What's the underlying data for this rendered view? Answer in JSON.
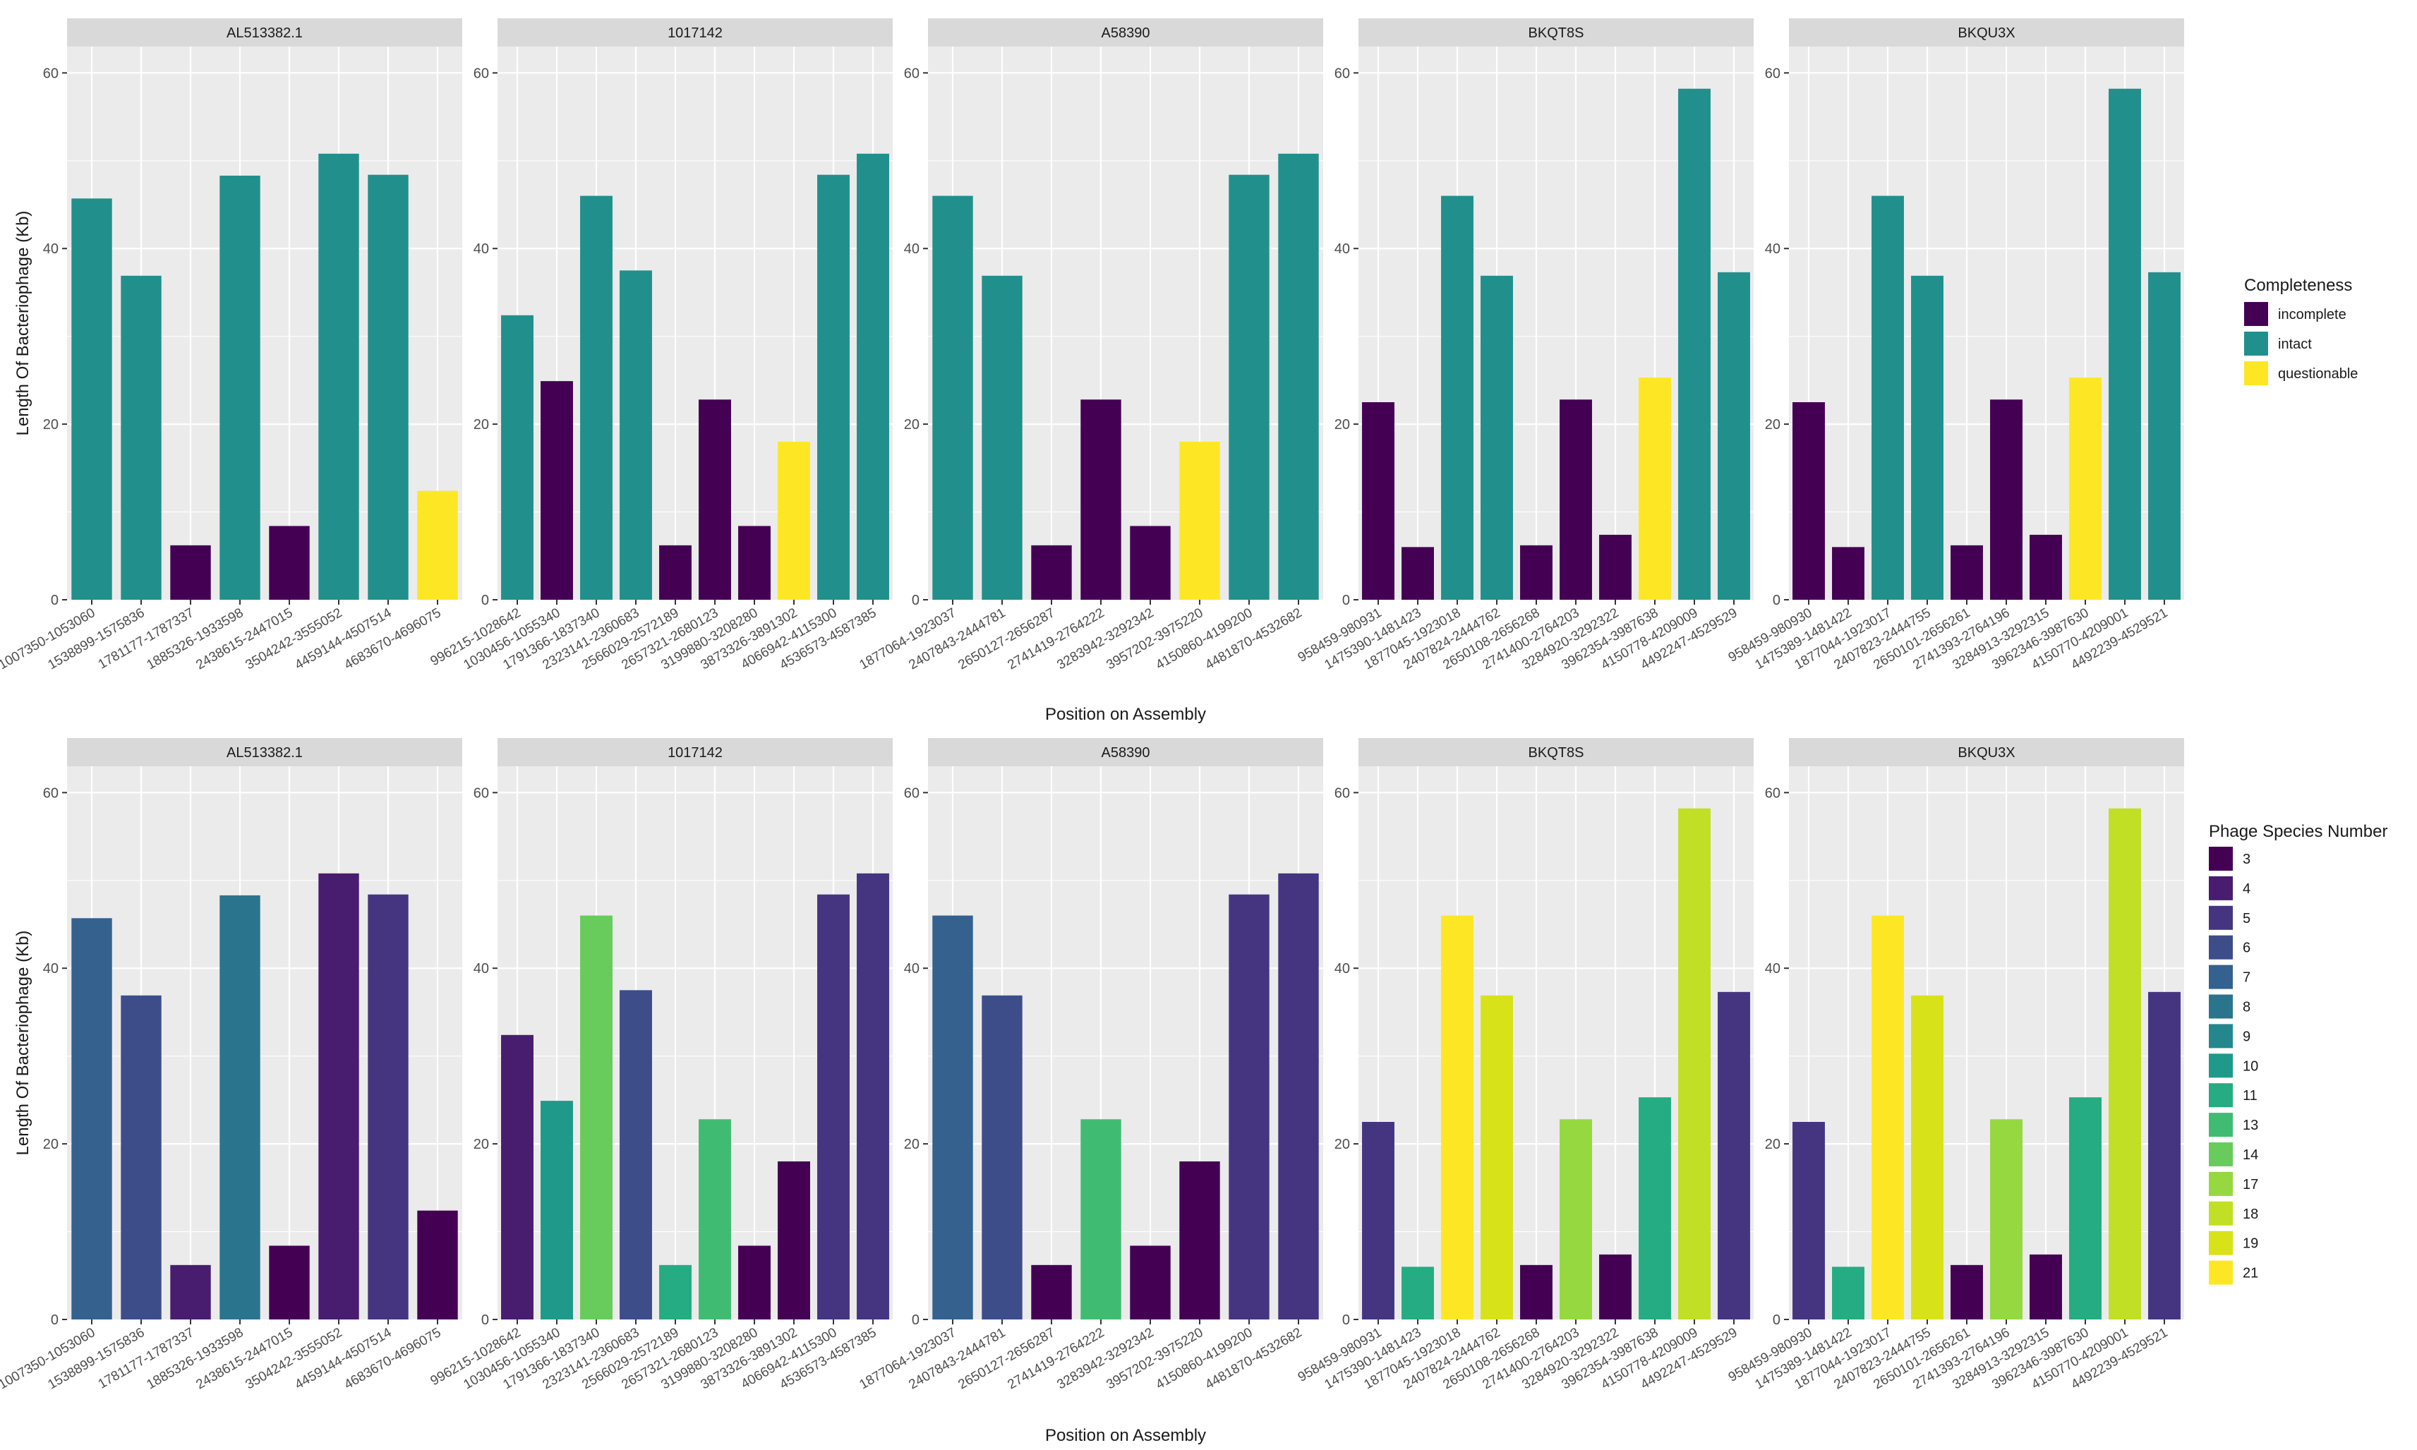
{
  "chart_data": [
    {
      "type": "bar",
      "xlabel": "Position on Assembly",
      "ylabel": "Length Of Bacteriophage (Kb)",
      "ylim": [
        0,
        63
      ],
      "yticks": [
        0,
        20,
        40,
        60
      ],
      "grid": true,
      "legend": {
        "title": "Completeness",
        "placement": "right",
        "entries": [
          {
            "label": "incomplete",
            "color": "#440154"
          },
          {
            "label": "intact",
            "color": "#21908C"
          },
          {
            "label": "questionable",
            "color": "#FDE725"
          }
        ]
      },
      "panels": [
        {
          "strip": "AL513382.1",
          "categories": [
            "1007350-1053060",
            "1538899-1575836",
            "1781177-1787337",
            "1885326-1933598",
            "2438615-2447015",
            "3504242-3555052",
            "4459144-4507514",
            "4683670-4696075"
          ],
          "values": [
            45.7,
            36.9,
            6.2,
            48.3,
            8.4,
            50.8,
            48.4,
            12.4
          ],
          "groups": [
            "intact",
            "intact",
            "incomplete",
            "intact",
            "incomplete",
            "intact",
            "intact",
            "questionable"
          ]
        },
        {
          "strip": "1017142",
          "categories": [
            "996215-1028642",
            "1030456-1055340",
            "1791366-1837340",
            "2323141-2360683",
            "2566029-2572189",
            "2657321-2680123",
            "3199880-3208280",
            "3873326-3891302",
            "4066942-4115300",
            "4536573-4587385"
          ],
          "values": [
            32.4,
            24.9,
            46.0,
            37.5,
            6.2,
            22.8,
            8.4,
            18.0,
            48.4,
            50.8
          ],
          "groups": [
            "intact",
            "incomplete",
            "intact",
            "intact",
            "incomplete",
            "incomplete",
            "incomplete",
            "questionable",
            "intact",
            "intact"
          ]
        },
        {
          "strip": "A58390",
          "categories": [
            "1877064-1923037",
            "2407843-2444781",
            "2650127-2656287",
            "2741419-2764222",
            "3283942-3292342",
            "3957202-3975220",
            "4150860-4199200",
            "4481870-4532682"
          ],
          "values": [
            46.0,
            36.9,
            6.2,
            22.8,
            8.4,
            18.0,
            48.4,
            50.8
          ],
          "groups": [
            "intact",
            "intact",
            "incomplete",
            "incomplete",
            "incomplete",
            "questionable",
            "intact",
            "intact"
          ]
        },
        {
          "strip": "BKQT8S",
          "categories": [
            "958459-980931",
            "1475390-1481423",
            "1877045-1923018",
            "2407824-2444762",
            "2650108-2656268",
            "2741400-2764203",
            "3284920-3292322",
            "3962354-3987638",
            "4150778-4209009",
            "4492247-4529529"
          ],
          "values": [
            22.5,
            6.0,
            46.0,
            36.9,
            6.2,
            22.8,
            7.4,
            25.3,
            58.2,
            37.3
          ],
          "groups": [
            "incomplete",
            "incomplete",
            "intact",
            "intact",
            "incomplete",
            "incomplete",
            "incomplete",
            "questionable",
            "intact",
            "intact"
          ]
        },
        {
          "strip": "BKQU3X",
          "categories": [
            "958459-980930",
            "1475389-1481422",
            "1877044-1923017",
            "2407823-2444755",
            "2650101-2656261",
            "2741393-2764196",
            "3284913-3292315",
            "3962346-3987630",
            "4150770-4209001",
            "4492239-4529521"
          ],
          "values": [
            22.5,
            6.0,
            46.0,
            36.9,
            6.2,
            22.8,
            7.4,
            25.3,
            58.2,
            37.3
          ],
          "groups": [
            "incomplete",
            "incomplete",
            "intact",
            "intact",
            "incomplete",
            "incomplete",
            "incomplete",
            "questionable",
            "intact",
            "intact"
          ]
        }
      ]
    },
    {
      "type": "bar",
      "xlabel": "Position on Assembly",
      "ylabel": "Length Of Bacteriophage (Kb)",
      "ylim": [
        0,
        63
      ],
      "yticks": [
        0,
        20,
        40,
        60
      ],
      "grid": true,
      "legend": {
        "title": "Phage Species Number",
        "placement": "right",
        "entries": [
          {
            "label": "3",
            "color": "#440154"
          },
          {
            "label": "4",
            "color": "#481D6F"
          },
          {
            "label": "5",
            "color": "#453581"
          },
          {
            "label": "6",
            "color": "#3D4D8A"
          },
          {
            "label": "7",
            "color": "#34618D"
          },
          {
            "label": "8",
            "color": "#2B748E"
          },
          {
            "label": "9",
            "color": "#24878E"
          },
          {
            "label": "10",
            "color": "#1F998A"
          },
          {
            "label": "11",
            "color": "#25AC82"
          },
          {
            "label": "13",
            "color": "#40BC72"
          },
          {
            "label": "14",
            "color": "#67CC5C"
          },
          {
            "label": "17",
            "color": "#96D83F"
          },
          {
            "label": "18",
            "color": "#C0DF25"
          },
          {
            "label": "19",
            "color": "#D8E219"
          },
          {
            "label": "21",
            "color": "#FDE725"
          }
        ]
      },
      "panels": [
        {
          "strip": "AL513382.1",
          "categories": [
            "1007350-1053060",
            "1538899-1575836",
            "1781177-1787337",
            "1885326-1933598",
            "2438615-2447015",
            "3504242-3555052",
            "4459144-4507514",
            "4683670-4696075"
          ],
          "values": [
            45.7,
            36.9,
            6.2,
            48.3,
            8.4,
            50.8,
            48.4,
            12.4
          ],
          "groups": [
            "7",
            "6",
            "4",
            "8",
            "3",
            "4",
            "5",
            "3"
          ]
        },
        {
          "strip": "1017142",
          "categories": [
            "996215-1028642",
            "1030456-1055340",
            "1791366-1837340",
            "2323141-2360683",
            "2566029-2572189",
            "2657321-2680123",
            "3199880-3208280",
            "3873326-3891302",
            "4066942-4115300",
            "4536573-4587385"
          ],
          "values": [
            32.4,
            24.9,
            46.0,
            37.5,
            6.2,
            22.8,
            8.4,
            18.0,
            48.4,
            50.8
          ],
          "groups": [
            "4",
            "10",
            "14",
            "6",
            "11",
            "13",
            "3",
            "3",
            "5",
            "5"
          ]
        },
        {
          "strip": "A58390",
          "categories": [
            "1877064-1923037",
            "2407843-2444781",
            "2650127-2656287",
            "2741419-2764222",
            "3283942-3292342",
            "3957202-3975220",
            "4150860-4199200",
            "4481870-4532682"
          ],
          "values": [
            46.0,
            36.9,
            6.2,
            22.8,
            8.4,
            18.0,
            48.4,
            50.8
          ],
          "groups": [
            "7",
            "6",
            "3",
            "13",
            "3",
            "3",
            "5",
            "5"
          ]
        },
        {
          "strip": "BKQT8S",
          "categories": [
            "958459-980931",
            "1475390-1481423",
            "1877045-1923018",
            "2407824-2444762",
            "2650108-2656268",
            "2741400-2764203",
            "3284920-3292322",
            "3962354-3987638",
            "4150778-4209009",
            "4492247-4529529"
          ],
          "values": [
            22.5,
            6.0,
            46.0,
            36.9,
            6.2,
            22.8,
            7.4,
            25.3,
            58.2,
            37.3
          ],
          "groups": [
            "5",
            "11",
            "21",
            "19",
            "3",
            "17",
            "3",
            "11",
            "18",
            "5"
          ]
        },
        {
          "strip": "BKQU3X",
          "categories": [
            "958459-980930",
            "1475389-1481422",
            "1877044-1923017",
            "2407823-2444755",
            "2650101-2656261",
            "2741393-2764196",
            "3284913-3292315",
            "3962346-3987630",
            "4150770-4209001",
            "4492239-4529521"
          ],
          "values": [
            22.5,
            6.0,
            46.0,
            36.9,
            6.2,
            22.8,
            7.4,
            25.3,
            58.2,
            37.3
          ],
          "groups": [
            "5",
            "11",
            "21",
            "19",
            "3",
            "17",
            "3",
            "11",
            "18",
            "5"
          ]
        }
      ]
    }
  ]
}
